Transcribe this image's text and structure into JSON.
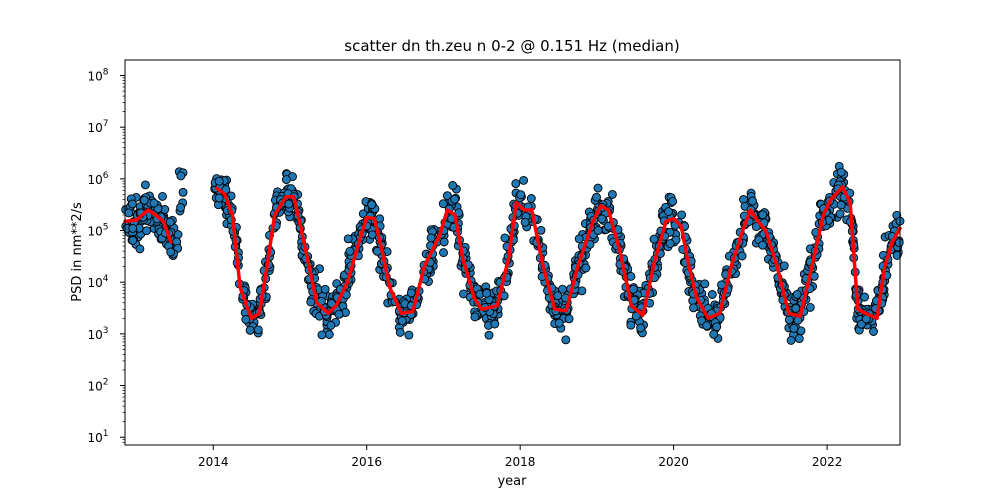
{
  "chart_data": {
    "type": "scatter",
    "title": "scatter dn th.zeu n 0-2 @ 0.151 Hz (median)",
    "xlabel": "year",
    "ylabel": "PSD in nm**2/s",
    "xlim": [
      2012.85,
      2022.95
    ],
    "ylim_log10": [
      0.85,
      8.3
    ],
    "yscale": "log",
    "x_ticks": [
      2014,
      2016,
      2018,
      2020,
      2022
    ],
    "y_ticks": [
      {
        "base": "10",
        "exp": "1",
        "value": 10
      },
      {
        "base": "10",
        "exp": "2",
        "value": 100
      },
      {
        "base": "10",
        "exp": "3",
        "value": 1000
      },
      {
        "base": "10",
        "exp": "4",
        "value": 10000
      },
      {
        "base": "10",
        "exp": "5",
        "value": 100000
      },
      {
        "base": "10",
        "exp": "6",
        "value": 1000000
      },
      {
        "base": "10",
        "exp": "7",
        "value": 10000000
      },
      {
        "base": "10",
        "exp": "8",
        "value": 100000000
      }
    ],
    "grid": false,
    "legend": "none",
    "scatter_color": "#1f77b4",
    "scatter_edge_color": "#000000",
    "median_color": "#ff0000",
    "median_series": {
      "x": [
        2012.85,
        2013.0,
        2013.15,
        2013.25,
        2013.35,
        2013.45,
        2013.55,
        2014.05,
        2014.15,
        2014.25,
        2014.35,
        2014.45,
        2014.5,
        2014.6,
        2014.7,
        2014.8,
        2014.95,
        2015.05,
        2015.15,
        2015.25,
        2015.35,
        2015.5,
        2015.6,
        2015.75,
        2015.9,
        2016.0,
        2016.1,
        2016.2,
        2016.3,
        2016.45,
        2016.6,
        2016.75,
        2016.95,
        2017.05,
        2017.15,
        2017.25,
        2017.4,
        2017.5,
        2017.7,
        2017.85,
        2017.95,
        2018.05,
        2018.15,
        2018.3,
        2018.45,
        2018.6,
        2018.75,
        2018.95,
        2019.05,
        2019.15,
        2019.3,
        2019.45,
        2019.6,
        2019.75,
        2019.9,
        2020.0,
        2020.1,
        2020.2,
        2020.3,
        2020.45,
        2020.6,
        2020.75,
        2020.9,
        2021.0,
        2021.1,
        2021.2,
        2021.35,
        2021.5,
        2021.65,
        2021.8,
        2021.95,
        2022.05,
        2022.2,
        2022.3,
        2022.4,
        2022.5,
        2022.65,
        2022.75,
        2022.85,
        2022.95
      ],
      "y": [
        150000,
        160000,
        250000,
        200000,
        150000,
        60000,
        null,
        650000,
        500000,
        200000,
        8000,
        3000,
        2000,
        2500,
        20000,
        200000,
        450000,
        450000,
        100000,
        20000,
        4000,
        2500,
        3500,
        10000,
        60000,
        180000,
        170000,
        40000,
        8000,
        2500,
        2700,
        20000,
        80000,
        250000,
        200000,
        30000,
        5000,
        3000,
        3500,
        30000,
        350000,
        250000,
        250000,
        20000,
        3000,
        2800,
        20000,
        150000,
        300000,
        250000,
        40000,
        3500,
        2300,
        25000,
        150000,
        170000,
        120000,
        20000,
        5000,
        2000,
        2500,
        20000,
        100000,
        250000,
        150000,
        100000,
        20000,
        2500,
        2200,
        20000,
        200000,
        400000,
        700000,
        350000,
        3000,
        2500,
        2000,
        20000,
        60000,
        110000
      ]
    }
  }
}
